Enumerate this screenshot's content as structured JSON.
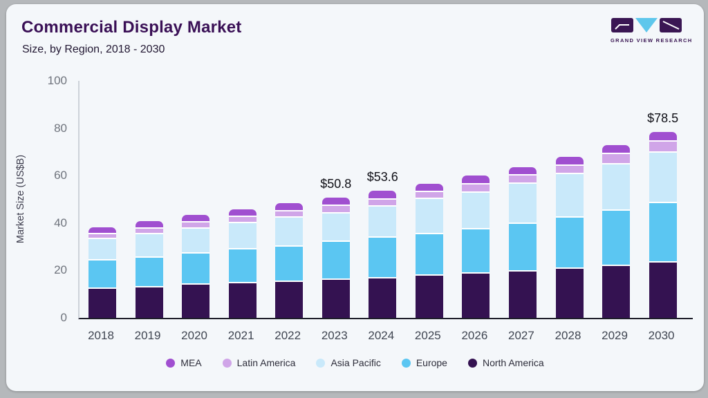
{
  "header": {
    "title": "Commercial Display Market",
    "subtitle": "Size, by Region, 2018 - 2030",
    "brand": "GRAND VIEW RESEARCH"
  },
  "palette": {
    "card_background": "#f4f7fa",
    "frame": "#b5b8bb",
    "brand_purple": "#3a1653",
    "brand_blue": "#5ec7ec",
    "title_color": "#3a1056"
  },
  "chart_data": {
    "type": "bar",
    "stacked": true,
    "title": "Commercial Display Market Size, by Region, 2018 - 2030",
    "xlabel": "",
    "ylabel": "Market Size (US$B)",
    "ylim": [
      0,
      100
    ],
    "yticks": [
      0,
      20,
      40,
      60,
      80,
      100
    ],
    "grid": false,
    "legend_position": "bottom",
    "categories": [
      "2018",
      "2019",
      "2020",
      "2021",
      "2022",
      "2023",
      "2024",
      "2025",
      "2026",
      "2027",
      "2028",
      "2029",
      "2030"
    ],
    "series": [
      {
        "name": "North America",
        "color": "#341251",
        "values": [
          12.9,
          13.5,
          14.6,
          15.2,
          15.8,
          16.5,
          17.3,
          18.3,
          19.2,
          20.2,
          21.4,
          22.4,
          24.0
        ]
      },
      {
        "name": "Europe",
        "color": "#5bc6f2",
        "values": [
          12.0,
          12.6,
          13.1,
          14.2,
          14.8,
          16.1,
          17.2,
          17.7,
          18.7,
          19.9,
          21.5,
          23.5,
          25.0
        ]
      },
      {
        "name": "Asia Pacific",
        "color": "#c9e9fa",
        "values": [
          9.0,
          9.9,
          10.5,
          11.1,
          12.3,
          12.1,
          12.9,
          14.6,
          15.5,
          17.0,
          18.2,
          19.5,
          21.4
        ]
      },
      {
        "name": "Latin America",
        "color": "#d0a5e8",
        "values": [
          2.1,
          2.3,
          2.6,
          2.7,
          2.7,
          3.0,
          3.1,
          3.0,
          3.4,
          3.5,
          3.7,
          4.2,
          4.4
        ]
      },
      {
        "name": "MEA",
        "color": "#a04fd0",
        "values": [
          2.3,
          2.5,
          2.6,
          2.7,
          2.7,
          3.1,
          3.1,
          3.0,
          3.2,
          3.1,
          3.1,
          3.2,
          3.7
        ]
      }
    ],
    "totals": [
      38.3,
      40.8,
      43.4,
      45.9,
      48.3,
      50.8,
      53.6,
      56.6,
      60.0,
      63.7,
      67.9,
      72.8,
      78.5
    ],
    "annotations": [
      {
        "category": "2023",
        "text": "$50.8"
      },
      {
        "category": "2024",
        "text": "$53.6"
      },
      {
        "category": "2030",
        "text": "$78.5"
      }
    ],
    "legend": [
      "MEA",
      "Latin America",
      "Asia Pacific",
      "Europe",
      "North America"
    ]
  }
}
